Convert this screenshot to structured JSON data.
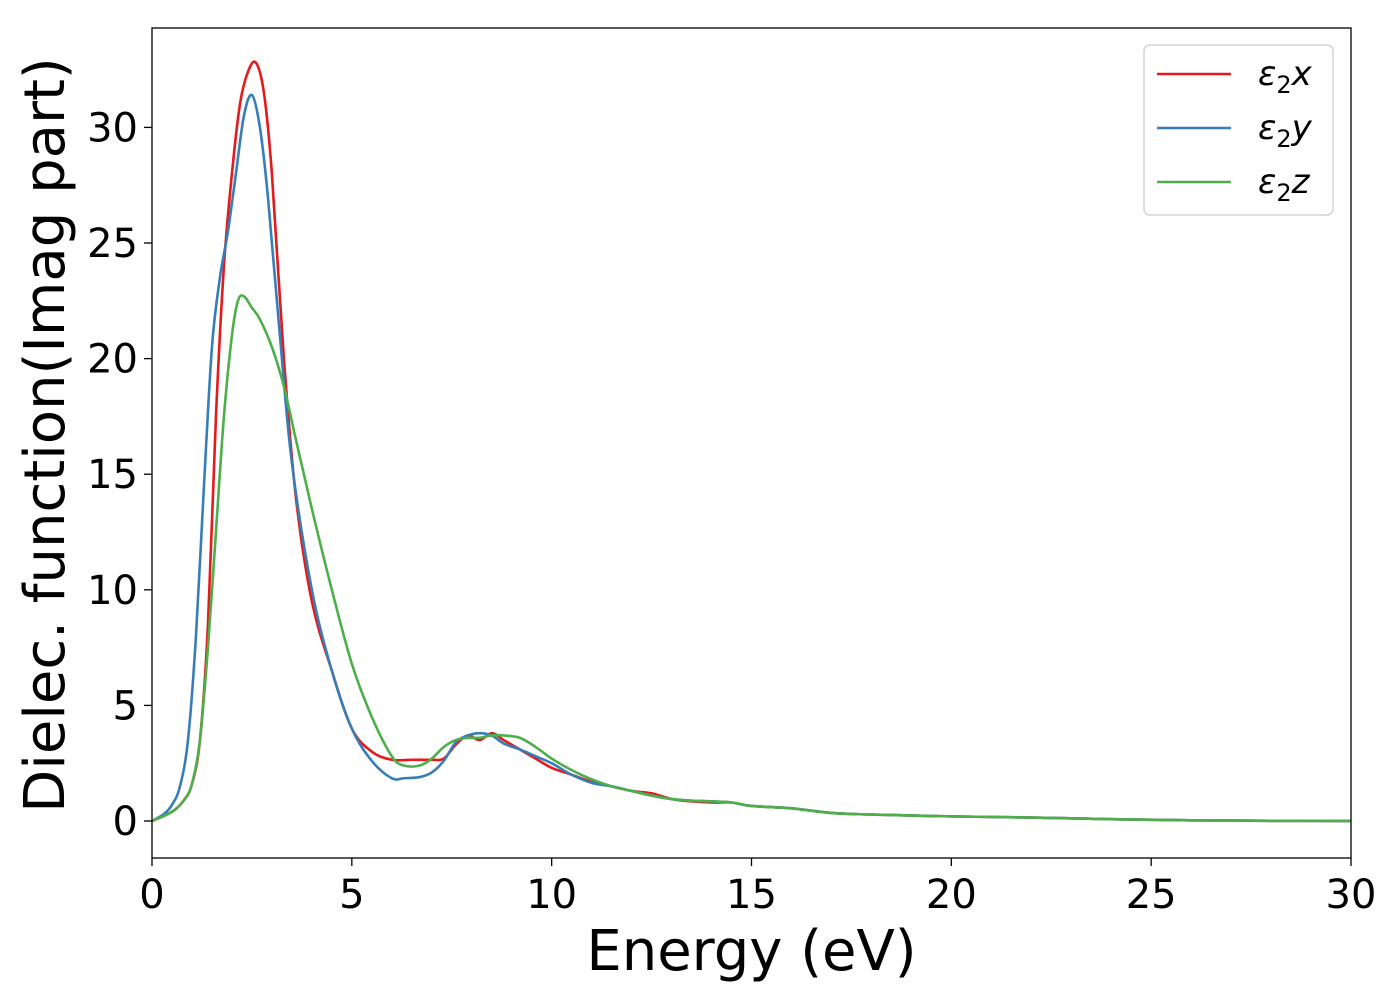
{
  "chart_data": {
    "type": "line",
    "xlabel": "Energy (eV)",
    "ylabel": "Dielec. function(Imag part)",
    "xlim": [
      0,
      30
    ],
    "ylim": [
      -1.6,
      34.3
    ],
    "xticks": [
      0,
      5,
      10,
      15,
      20,
      25,
      30
    ],
    "yticks": [
      0,
      5,
      10,
      15,
      20,
      25,
      30
    ],
    "grid": false,
    "legend_position": "top-right",
    "series": [
      {
        "name": "ε2x",
        "base": "ε",
        "sub": "2",
        "suffix": "x",
        "color": "#e41a1c",
        "x": [
          0,
          0.5,
          0.8,
          1.0,
          1.2,
          1.4,
          1.6,
          1.8,
          2.0,
          2.2,
          2.4,
          2.6,
          2.8,
          3.0,
          3.3,
          3.6,
          4.0,
          4.5,
          5.0,
          5.5,
          6.0,
          6.5,
          7.0,
          7.3,
          7.6,
          7.9,
          8.2,
          8.5,
          8.8,
          9.2,
          9.6,
          10.0,
          10.5,
          11.0,
          11.5,
          12.0,
          12.5,
          13.0,
          13.5,
          14.0,
          14.5,
          15.0,
          16.0,
          17.0,
          18.0,
          20.0,
          22.0,
          24.0,
          26.0,
          28.0,
          30.0
        ],
        "y": [
          0,
          0.4,
          0.9,
          1.6,
          3.5,
          8.5,
          17.5,
          24.0,
          28.0,
          31.0,
          32.4,
          32.8,
          31.5,
          28.0,
          20.0,
          14.0,
          9.5,
          6.5,
          4.0,
          3.0,
          2.65,
          2.65,
          2.65,
          2.7,
          3.3,
          3.7,
          3.5,
          3.8,
          3.5,
          3.1,
          2.7,
          2.3,
          2.0,
          1.7,
          1.5,
          1.3,
          1.2,
          0.95,
          0.85,
          0.8,
          0.8,
          0.65,
          0.55,
          0.35,
          0.28,
          0.2,
          0.15,
          0.08,
          0.03,
          0.01,
          0
        ]
      },
      {
        "name": "ε2y",
        "base": "ε",
        "sub": "2",
        "suffix": "y",
        "color": "#377eb8",
        "x": [
          0,
          0.3,
          0.5,
          0.7,
          0.9,
          1.1,
          1.3,
          1.5,
          1.7,
          1.9,
          2.1,
          2.3,
          2.5,
          2.7,
          2.9,
          3.2,
          3.5,
          4.0,
          4.5,
          5.0,
          5.5,
          6.0,
          6.3,
          6.7,
          7.0,
          7.3,
          7.6,
          7.9,
          8.2,
          8.5,
          8.8,
          9.2,
          9.6,
          10.0,
          10.5,
          11.0,
          11.5,
          12.0,
          12.5,
          13.0,
          13.5,
          14.0,
          14.5,
          15.0,
          16.0,
          17.0,
          18.0,
          20.0,
          22.0,
          24.0,
          26.0,
          28.0,
          30.0
        ],
        "y": [
          0,
          0.3,
          0.7,
          1.5,
          3.5,
          8.0,
          14.5,
          20.5,
          23.5,
          25.5,
          28.0,
          30.5,
          31.4,
          30.0,
          27.0,
          21.0,
          15.5,
          10.0,
          6.5,
          4.0,
          2.6,
          1.85,
          1.85,
          1.9,
          2.1,
          2.6,
          3.4,
          3.7,
          3.8,
          3.7,
          3.35,
          3.1,
          2.8,
          2.5,
          2.0,
          1.65,
          1.5,
          1.3,
          1.1,
          0.95,
          0.88,
          0.85,
          0.8,
          0.65,
          0.55,
          0.35,
          0.28,
          0.2,
          0.15,
          0.08,
          0.03,
          0.01,
          0
        ]
      },
      {
        "name": "ε2z",
        "base": "ε",
        "sub": "2",
        "suffix": "z",
        "color": "#4daf4a",
        "x": [
          0,
          0.5,
          0.8,
          1.0,
          1.2,
          1.4,
          1.6,
          1.8,
          2.0,
          2.15,
          2.3,
          2.5,
          2.7,
          3.0,
          3.3,
          3.6,
          4.0,
          4.5,
          5.0,
          5.5,
          6.0,
          6.3,
          6.7,
          7.0,
          7.3,
          7.6,
          7.9,
          8.2,
          8.5,
          8.8,
          9.2,
          9.6,
          10.0,
          10.5,
          11.0,
          11.5,
          12.0,
          12.5,
          13.0,
          13.5,
          14.0,
          14.5,
          15.0,
          16.0,
          17.0,
          18.0,
          20.0,
          22.0,
          24.0,
          26.0,
          28.0,
          30.0
        ],
        "y": [
          0,
          0.4,
          0.9,
          1.6,
          3.5,
          7.5,
          12.5,
          17.5,
          21.0,
          22.5,
          22.7,
          22.2,
          21.7,
          20.5,
          18.8,
          16.5,
          13.5,
          10.0,
          6.8,
          4.5,
          2.8,
          2.4,
          2.4,
          2.7,
          3.2,
          3.5,
          3.6,
          3.6,
          3.7,
          3.7,
          3.6,
          3.2,
          2.7,
          2.2,
          1.8,
          1.5,
          1.3,
          1.1,
          0.95,
          0.88,
          0.85,
          0.8,
          0.65,
          0.55,
          0.35,
          0.28,
          0.2,
          0.15,
          0.08,
          0.03,
          0.01,
          0
        ]
      }
    ]
  }
}
